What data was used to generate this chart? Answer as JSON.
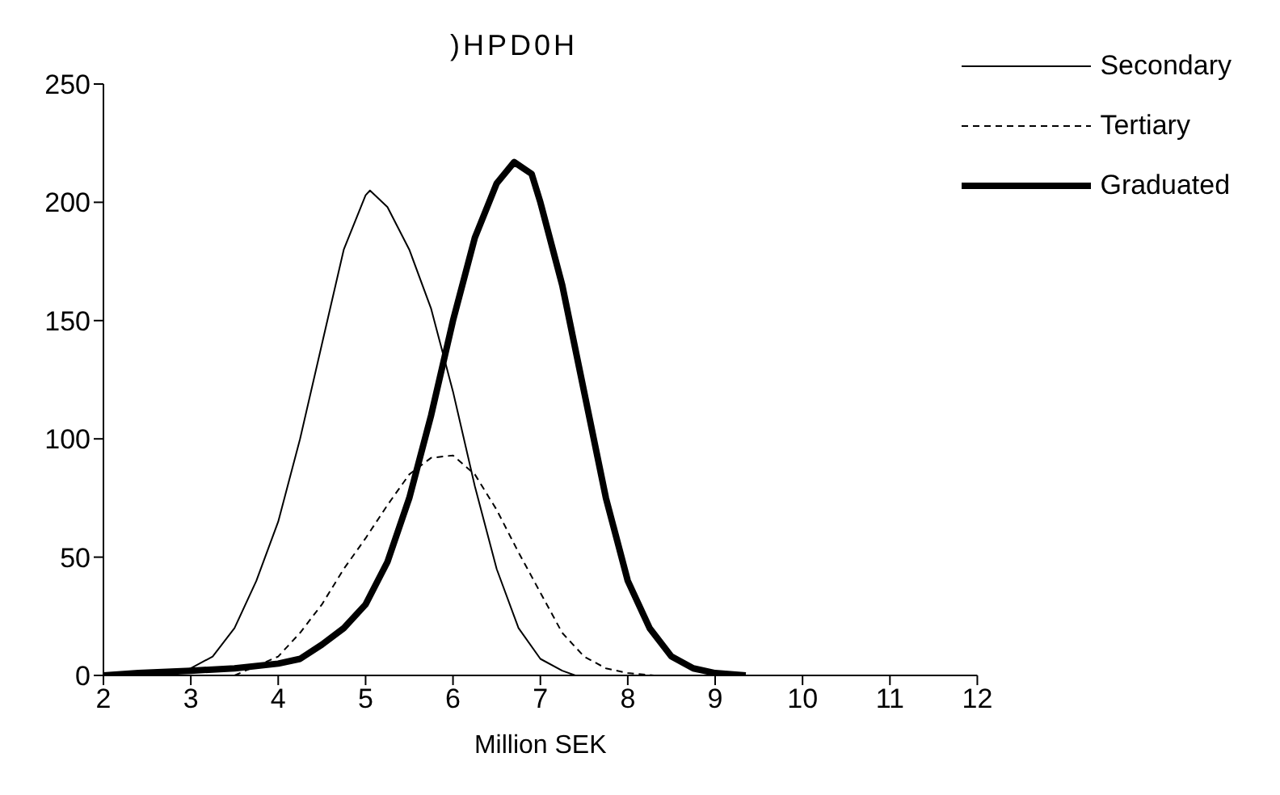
{
  "chart_data": {
    "type": "line",
    "title": ")HPD0H",
    "xlabel": "Million SEK",
    "xlim": [
      2,
      12
    ],
    "xticks": [
      2,
      3,
      4,
      5,
      6,
      7,
      8,
      9,
      10,
      11,
      12
    ],
    "ylim": [
      0,
      250
    ],
    "yticks": [
      0,
      50,
      100,
      150,
      200,
      250
    ],
    "grid": false,
    "legend": "top right",
    "marker": "none",
    "series": [
      {
        "name": "Secondary",
        "color": "#000000",
        "line_style": "solid",
        "x": [
          2.8,
          3.0,
          3.25,
          3.5,
          3.75,
          4.0,
          4.25,
          4.5,
          4.75,
          5.0,
          5.05,
          5.25,
          5.5,
          5.75,
          6.0,
          6.25,
          6.5,
          6.75,
          7.0,
          7.25,
          7.4
        ],
        "values": [
          0,
          3,
          8,
          20,
          40,
          65,
          100,
          140,
          180,
          203,
          205,
          198,
          180,
          155,
          120,
          80,
          45,
          20,
          7,
          2,
          0
        ]
      },
      {
        "name": "Tertiary",
        "color": "#000000",
        "line_style": "dashed",
        "x": [
          3.5,
          4.0,
          4.25,
          4.5,
          4.75,
          5.0,
          5.25,
          5.5,
          5.75,
          6.0,
          6.25,
          6.5,
          6.75,
          7.0,
          7.25,
          7.5,
          7.75,
          8.0,
          8.3
        ],
        "values": [
          0,
          8,
          18,
          30,
          45,
          58,
          72,
          85,
          92,
          93,
          85,
          70,
          52,
          35,
          18,
          8,
          3,
          1,
          0
        ]
      },
      {
        "name": "Graduated",
        "color": "#000000",
        "line_style": "solid",
        "x": [
          2.0,
          2.4,
          3.0,
          3.5,
          4.0,
          4.25,
          4.5,
          4.75,
          5.0,
          5.25,
          5.5,
          5.75,
          6.0,
          6.25,
          6.5,
          6.7,
          6.9,
          7.0,
          7.25,
          7.5,
          7.75,
          8.0,
          8.25,
          8.5,
          8.75,
          9.0,
          9.35
        ],
        "values": [
          0,
          1,
          2,
          3,
          5,
          7,
          13,
          20,
          30,
          48,
          75,
          110,
          150,
          185,
          208,
          217,
          212,
          200,
          165,
          120,
          75,
          40,
          20,
          8,
          3,
          1,
          0
        ]
      }
    ]
  }
}
